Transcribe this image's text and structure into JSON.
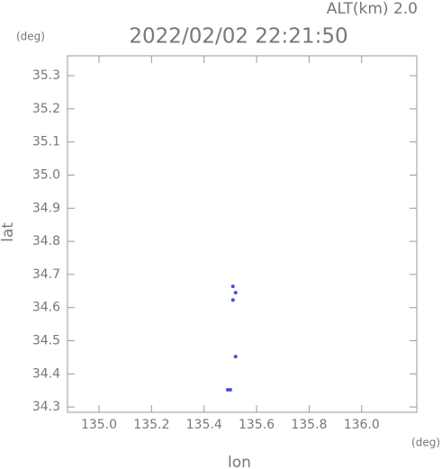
{
  "chart_data": {
    "type": "scatter",
    "title": "2022/02/02 22:21:50",
    "annotation": "ALT(km) 2.0",
    "y_unit": "(deg)",
    "x_unit": "(deg)",
    "x_label": "lon",
    "y_label": "lat",
    "x": [
      135.52,
      135.52,
      135.51,
      135.51,
      135.5,
      135.49
    ],
    "y": [
      34.645,
      34.452,
      34.664,
      34.623,
      34.352,
      34.352
    ],
    "color": "#4050e0",
    "xlim": [
      134.88,
      136.21
    ],
    "ylim": [
      34.284,
      35.36
    ],
    "xticks": [
      {
        "value": 135,
        "label": "135.0"
      },
      135.2,
      135.4,
      135.6,
      135.8,
      {
        "value": 136,
        "label": "136.0"
      }
    ],
    "yticks": [
      35.3,
      35.2,
      35.1,
      {
        "value": 35,
        "label": "35.0"
      },
      34.9,
      34.8,
      34.7,
      34.6,
      34.5,
      34.4,
      34.3
    ]
  }
}
